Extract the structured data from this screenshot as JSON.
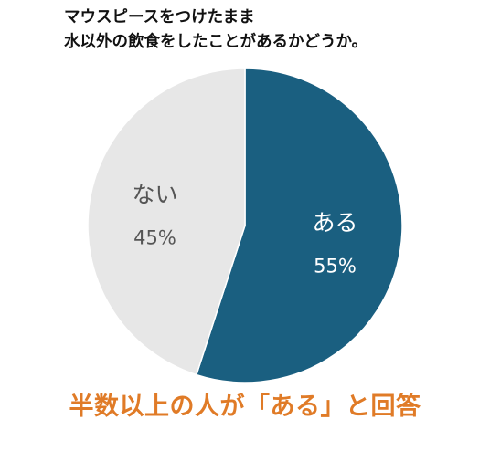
{
  "title": {
    "line1": "マウスピースをつけたまま",
    "line2": "水以外の飲食をしたことがあるかどうか。"
  },
  "chart_data": {
    "type": "pie",
    "title": "マウスピースをつけたまま水以外の飲食をしたことがあるかどうか。",
    "slices": [
      {
        "label": "ある",
        "value": 55,
        "value_label": "55%",
        "color": "#1a5f80",
        "text_color": "#ffffff"
      },
      {
        "label": "ない",
        "value": 45,
        "value_label": "45%",
        "color": "#e7e7e7",
        "text_color": "#555555"
      }
    ],
    "start_angle_deg": 0,
    "direction": "clockwise",
    "legend": "none"
  },
  "caption": "半数以上の人が「ある」と回答"
}
